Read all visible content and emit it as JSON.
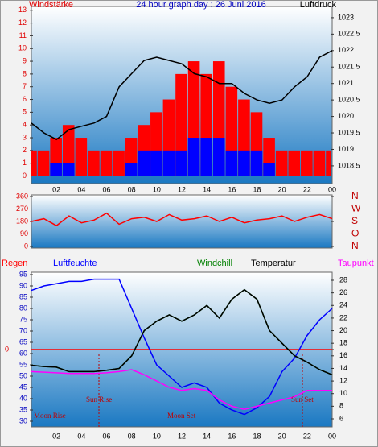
{
  "chart_data": [
    {
      "type": "bar",
      "title": "24 hour graph day : 26 Juni 2016",
      "ylabel": "Windstärke",
      "y2label": "Luftdruck",
      "x": [
        0,
        1,
        2,
        3,
        4,
        5,
        6,
        7,
        8,
        9,
        10,
        11,
        12,
        13,
        14,
        15,
        16,
        17,
        18,
        19,
        20,
        21,
        22,
        23,
        24
      ],
      "xlim": [
        0,
        24
      ],
      "xticks": [
        {
          "value": 2,
          "label": "02"
        },
        {
          "value": 4,
          "label": "04"
        },
        {
          "value": 6,
          "label": "06"
        },
        {
          "value": 8,
          "label": "08"
        },
        10,
        12,
        14,
        16,
        18,
        20,
        22,
        {
          "value": 24,
          "label": "00"
        }
      ],
      "ylim": [
        -0.6,
        13.3
      ],
      "yticks": [
        0,
        1,
        2,
        3,
        4,
        5,
        6,
        7,
        8,
        9,
        10,
        11,
        12,
        13
      ],
      "y2lim": [
        1017.96,
        1023.34
      ],
      "y2ticks": [
        1018.5,
        1019,
        1019.5,
        1020,
        1020.5,
        1021,
        1021.5,
        1022,
        1022.5,
        1023
      ],
      "series": [
        {
          "color": "#ff0000",
          "values": [
            2,
            2,
            3,
            4,
            3,
            2,
            2,
            2,
            3,
            4,
            5,
            6,
            8,
            9,
            8,
            9,
            7,
            6,
            5,
            3,
            2,
            2,
            2,
            2,
            2
          ]
        },
        {
          "color": "#0000ff",
          "values": [
            0,
            0,
            1,
            1,
            0,
            0,
            0,
            0,
            1,
            2,
            2,
            2,
            2,
            3,
            3,
            3,
            2,
            2,
            2,
            1,
            0,
            0,
            0,
            0,
            0
          ]
        },
        {
          "color": "#000000",
          "axis": "y2",
          "values": [
            1019.8,
            1019.5,
            1019.3,
            1019.6,
            1019.7,
            1019.8,
            1020.0,
            1020.9,
            1021.3,
            1021.7,
            1021.8,
            1021.7,
            1021.6,
            1021.3,
            1021.2,
            1021.0,
            1021.0,
            1020.7,
            1020.5,
            1020.4,
            1020.5,
            1020.9,
            1021.2,
            1021.8,
            1022.0
          ]
        }
      ]
    },
    {
      "type": "line",
      "x": [
        0,
        1,
        2,
        3,
        4,
        5,
        6,
        7,
        8,
        9,
        10,
        11,
        12,
        13,
        14,
        15,
        16,
        17,
        18,
        19,
        20,
        21,
        22,
        23,
        24
      ],
      "xlim": [
        0,
        24
      ],
      "ylim": [
        -11.6,
        371.6
      ],
      "yticks": [
        0,
        90,
        180,
        270,
        360
      ],
      "y2lim": [
        -11.6,
        371.6
      ],
      "y2ticks": [
        {
          "value": 360,
          "label": "N"
        },
        {
          "value": 270,
          "label": "W"
        },
        {
          "value": 180,
          "label": "S"
        },
        {
          "value": 90,
          "label": "O"
        },
        {
          "value": 0,
          "label": "N"
        }
      ],
      "series": [
        {
          "color": "#ff0000",
          "values": [
            180,
            200,
            150,
            220,
            170,
            190,
            240,
            160,
            200,
            210,
            180,
            230,
            190,
            200,
            220,
            180,
            210,
            170,
            190,
            200,
            220,
            180,
            210,
            230,
            200
          ]
        }
      ]
    },
    {
      "type": "line",
      "x": [
        0,
        1,
        2,
        3,
        4,
        5,
        6,
        7,
        8,
        9,
        10,
        11,
        12,
        13,
        14,
        15,
        16,
        17,
        18,
        19,
        20,
        21,
        22,
        23,
        24
      ],
      "xlim": [
        0,
        24
      ],
      "xticks": [
        {
          "value": 2,
          "label": "02"
        },
        {
          "value": 4,
          "label": "04"
        },
        {
          "value": 6,
          "label": "06"
        },
        {
          "value": 8,
          "label": "08"
        },
        10,
        12,
        14,
        16,
        18,
        20,
        22,
        {
          "value": 24,
          "label": "00"
        }
      ],
      "ylim": [
        27.5,
        96.07
      ],
      "yticks": [
        30,
        35,
        40,
        45,
        50,
        55,
        60,
        65,
        70,
        75,
        80,
        85,
        90,
        95
      ],
      "y2lim": [
        4.72,
        29.28
      ],
      "y2ticks": [
        6,
        8,
        10,
        12,
        14,
        16,
        18,
        20,
        22,
        24,
        26,
        28
      ],
      "y3lim": [
        -1,
        1
      ],
      "y3ticks": [
        0
      ],
      "series": [
        {
          "name": "Regen",
          "color": "#ff0000",
          "axis": "y3",
          "values": [
            0,
            0,
            0,
            0,
            0,
            0,
            0,
            0,
            0,
            0,
            0,
            0,
            0,
            0,
            0,
            0,
            0,
            0,
            0,
            0,
            0,
            0,
            0,
            0,
            0
          ]
        },
        {
          "name": "Luftfeuchte",
          "color": "#0000ff",
          "values": [
            88,
            90,
            91,
            92,
            92,
            93,
            93,
            93,
            80,
            67,
            55,
            50,
            45,
            47,
            45,
            38,
            35,
            33,
            36,
            41,
            52,
            58,
            68,
            75,
            80
          ]
        },
        {
          "name": "Windchill",
          "color": "#008000",
          "axis": "y2",
          "values": [
            14.5,
            14.3,
            14.2,
            13.5,
            13.5,
            13.5,
            13.7,
            14,
            16,
            20,
            21.5,
            22.5,
            21.5,
            22.5,
            24,
            22,
            25,
            26.5,
            25,
            20,
            18,
            16,
            15,
            13.8,
            13
          ]
        },
        {
          "name": "Temperatur",
          "color": "#000000",
          "axis": "y2",
          "values": [
            14.5,
            14.3,
            14.2,
            13.5,
            13.5,
            13.5,
            13.7,
            14,
            16,
            20,
            21.5,
            22.5,
            21.5,
            22.5,
            24,
            22,
            25,
            26.5,
            25,
            20,
            18,
            16,
            15,
            13.8,
            13
          ]
        },
        {
          "name": "Taupunkt",
          "color": "#ff00ff",
          "axis": "y2",
          "values": [
            13.5,
            13.4,
            13.3,
            13.2,
            13.2,
            13.2,
            13.3,
            13.5,
            13.8,
            13,
            12,
            11,
            10.5,
            10.8,
            10.5,
            9,
            8,
            7.5,
            8,
            8.5,
            9,
            9.5,
            10.5,
            10.5,
            10.5
          ]
        }
      ],
      "annotations": [
        "Moon Rise",
        "Sun Rise",
        "Moon Set",
        "Sun Set"
      ]
    }
  ]
}
